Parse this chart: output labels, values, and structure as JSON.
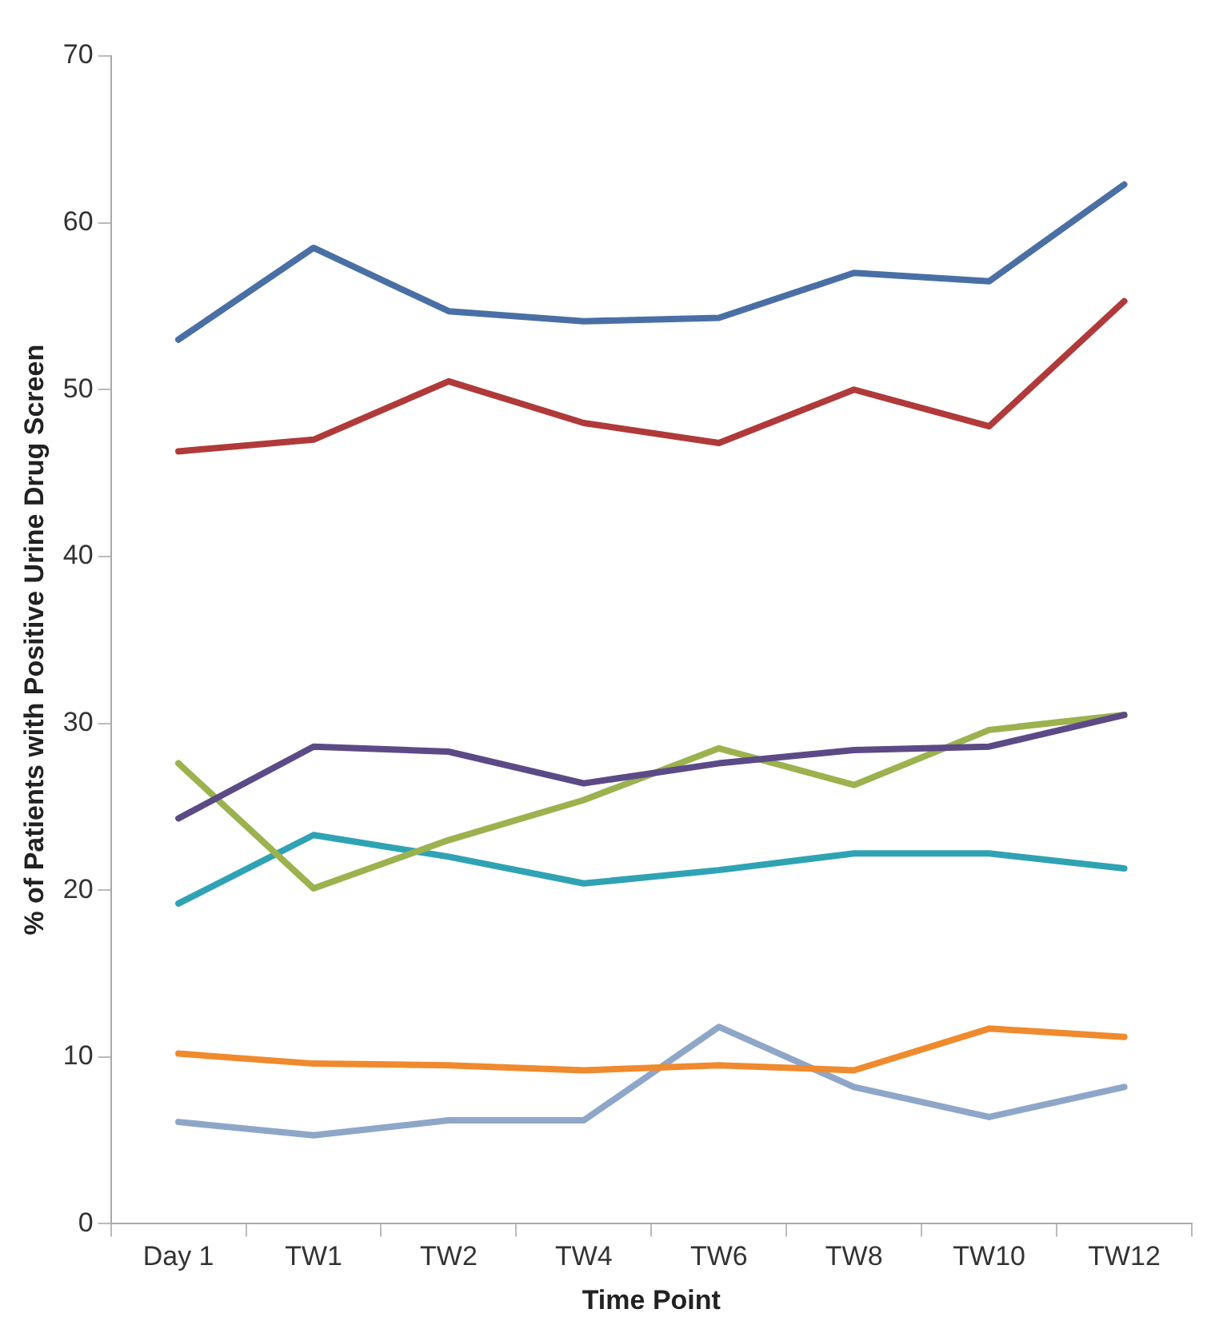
{
  "chart_data": {
    "type": "line",
    "xlabel": "Time Point",
    "ylabel": "% of Patients with Positive Urine Drug Screen",
    "categories": [
      "Day 1",
      "TW1",
      "TW2",
      "TW4",
      "TW6",
      "TW8",
      "TW10",
      "TW12"
    ],
    "ylim": [
      0,
      70
    ],
    "yticks": [
      0,
      10,
      20,
      30,
      40,
      50,
      60,
      70
    ],
    "grid": false,
    "legend": false,
    "marker": "none",
    "line_style": "solid",
    "series": [
      {
        "color": "#4a6fa5",
        "values": [
          53,
          58.5,
          54.7,
          54.1,
          54.3,
          57,
          56.5,
          62.3
        ]
      },
      {
        "color": "#b03a3a",
        "values": [
          46.3,
          47,
          50.5,
          48,
          46.8,
          50,
          47.8,
          55.3
        ]
      },
      {
        "color": "#5c4a87",
        "values": [
          24.3,
          28.6,
          28.3,
          26.4,
          27.6,
          28.4,
          28.6,
          30.5
        ]
      },
      {
        "color": "#9bb24e",
        "values": [
          27.6,
          20.1,
          23,
          25.4,
          28.5,
          26.3,
          29.6,
          30.5
        ]
      },
      {
        "color": "#2fa3b4",
        "values": [
          19.2,
          23.3,
          22,
          20.4,
          21.2,
          22.2,
          22.2,
          21.3
        ]
      },
      {
        "color": "#f08a2e",
        "values": [
          10.2,
          9.6,
          9.5,
          9.2,
          9.5,
          9.2,
          11.7,
          11.2
        ]
      },
      {
        "color": "#8ea6c8",
        "values": [
          6.1,
          5.3,
          6.2,
          6.2,
          11.8,
          8.2,
          6.4,
          8.2
        ]
      }
    ]
  }
}
